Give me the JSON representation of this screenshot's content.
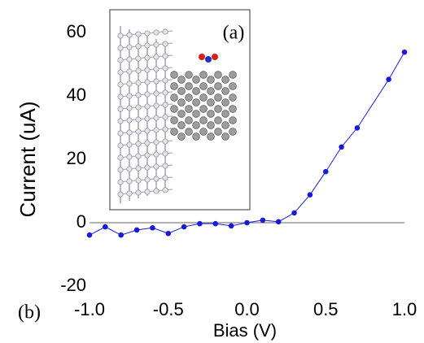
{
  "chart_data": {
    "type": "line",
    "x_label": "Bias (V)",
    "y_label": "Current (uA)",
    "annotations": [
      "(a)",
      "(b)"
    ],
    "x": [
      -1.0,
      -0.9,
      -0.8,
      -0.7,
      -0.6,
      -0.5,
      -0.4,
      -0.3,
      -0.2,
      -0.1,
      0.0,
      0.1,
      0.2,
      0.3,
      0.4,
      0.5,
      0.6,
      0.7,
      0.9,
      1.0
    ],
    "series": [
      {
        "color": "#1a1ad6",
        "values": [
          -3.9,
          -1.3,
          -3.9,
          -2.3,
          -1.6,
          -3.4,
          -1.3,
          -0.3,
          -0.3,
          -1.0,
          0,
          0.8,
          0.3,
          3.1,
          8.8,
          16.1,
          23.9,
          29.9,
          45.2,
          53.8
        ]
      }
    ],
    "xlim": [
      -1.0,
      1.0
    ],
    "xticks": [
      {
        "value": -1.0,
        "label": "-1.0"
      },
      {
        "value": -0.5,
        "label": "-0.5"
      },
      {
        "value": 0,
        "label": "0.0"
      },
      {
        "value": 0.5,
        "label": "0.5"
      },
      {
        "value": 1.0,
        "label": "1.0"
      }
    ],
    "ylim": [
      -20,
      60
    ],
    "yticks": [
      -20,
      0,
      20,
      40,
      60
    ]
  }
}
